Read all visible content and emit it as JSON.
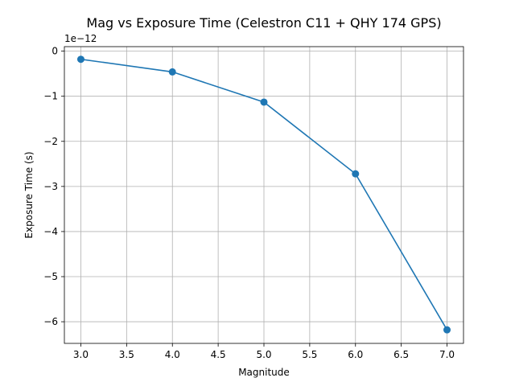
{
  "chart_data": {
    "type": "line",
    "title": "Mag vs Exposure Time (Celestron C11 + QHY 174 GPS)",
    "xlabel": "Magnitude",
    "ylabel": "Exposure Time (s)",
    "y_offset_label": "1e−12",
    "x": [
      3.0,
      4.0,
      5.0,
      6.0,
      7.0
    ],
    "series": [
      {
        "values": [
          -0.18,
          -0.46,
          -1.13,
          -2.72,
          -6.18
        ]
      }
    ],
    "xlim": [
      2.82,
      7.18
    ],
    "ylim": [
      -6.48,
      0.1
    ],
    "xticks": [
      3.0,
      3.5,
      4.0,
      4.5,
      5.0,
      5.5,
      6.0,
      6.5,
      7.0
    ],
    "xtick_labels": [
      "3.0",
      "3.5",
      "4.0",
      "4.5",
      "5.0",
      "5.5",
      "6.0",
      "6.5",
      "7.0"
    ],
    "yticks": [
      0,
      -1,
      -2,
      -3,
      -4,
      -5,
      -6
    ],
    "ytick_labels": [
      "0",
      "−1",
      "−2",
      "−3",
      "−4",
      "−5",
      "−6"
    ],
    "grid": true,
    "line_color": "#1f77b4",
    "marker": "circle"
  }
}
